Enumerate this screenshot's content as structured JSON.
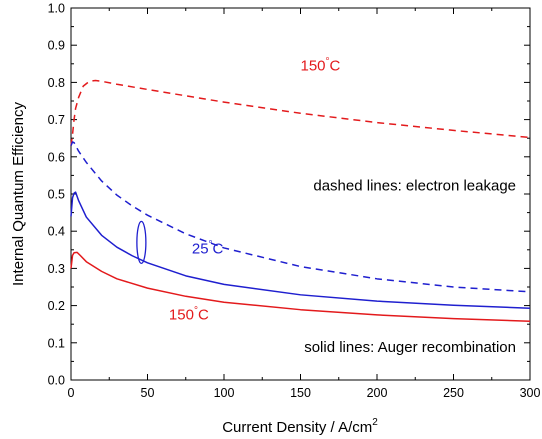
{
  "chart_data": {
    "type": "line",
    "xlabel": "Current Density / A/cm²",
    "ylabel": "Internal Quantum Efficiency",
    "xlim": [
      0,
      300
    ],
    "ylim": [
      0,
      1.0
    ],
    "x_ticks": [
      "0",
      "50",
      "100",
      "150",
      "200",
      "250",
      "300"
    ],
    "y_ticks": [
      "0.0",
      "0.1",
      "0.2",
      "0.3",
      "0.4",
      "0.5",
      "0.6",
      "0.7",
      "0.8",
      "0.9",
      "1.0"
    ],
    "grid": false,
    "series": [
      {
        "label": "150°C",
        "mechanism": "electron leakage",
        "style": "dashed",
        "color": "#e31a1c",
        "points": [
          [
            0,
            0.63
          ],
          [
            1,
            0.66
          ],
          [
            2,
            0.7
          ],
          [
            3,
            0.73
          ],
          [
            5,
            0.76
          ],
          [
            8,
            0.79
          ],
          [
            12,
            0.803
          ],
          [
            16,
            0.805
          ],
          [
            20,
            0.803
          ],
          [
            30,
            0.795
          ],
          [
            50,
            0.781
          ],
          [
            75,
            0.764
          ],
          [
            100,
            0.747
          ],
          [
            150,
            0.717
          ],
          [
            200,
            0.692
          ],
          [
            250,
            0.671
          ],
          [
            300,
            0.652
          ]
        ]
      },
      {
        "label": "25°C",
        "mechanism": "electron leakage",
        "style": "dashed",
        "color": "#1f1fcf",
        "points": [
          [
            0,
            0.63
          ],
          [
            1,
            0.64
          ],
          [
            2,
            0.638
          ],
          [
            5,
            0.615
          ],
          [
            10,
            0.585
          ],
          [
            20,
            0.535
          ],
          [
            30,
            0.497
          ],
          [
            40,
            0.468
          ],
          [
            50,
            0.443
          ],
          [
            75,
            0.393
          ],
          [
            100,
            0.355
          ],
          [
            150,
            0.305
          ],
          [
            200,
            0.272
          ],
          [
            250,
            0.25
          ],
          [
            300,
            0.237
          ]
        ]
      },
      {
        "label": "25°C",
        "mechanism": "Auger recombination",
        "style": "solid",
        "color": "#1f1fcf",
        "points": [
          [
            0,
            0.44
          ],
          [
            1,
            0.49
          ],
          [
            2,
            0.502
          ],
          [
            3,
            0.505
          ],
          [
            5,
            0.482
          ],
          [
            10,
            0.438
          ],
          [
            20,
            0.389
          ],
          [
            30,
            0.357
          ],
          [
            40,
            0.334
          ],
          [
            50,
            0.315
          ],
          [
            75,
            0.28
          ],
          [
            100,
            0.257
          ],
          [
            150,
            0.229
          ],
          [
            200,
            0.212
          ],
          [
            250,
            0.201
          ],
          [
            300,
            0.193
          ]
        ]
      },
      {
        "label": "150°C",
        "mechanism": "Auger recombination",
        "style": "solid",
        "color": "#e31a1c",
        "points": [
          [
            0,
            0.3
          ],
          [
            1,
            0.335
          ],
          [
            2,
            0.342
          ],
          [
            4,
            0.343
          ],
          [
            6,
            0.335
          ],
          [
            10,
            0.318
          ],
          [
            20,
            0.292
          ],
          [
            30,
            0.272
          ],
          [
            50,
            0.247
          ],
          [
            75,
            0.225
          ],
          [
            100,
            0.209
          ],
          [
            150,
            0.189
          ],
          [
            200,
            0.175
          ],
          [
            250,
            0.165
          ],
          [
            300,
            0.158
          ]
        ]
      }
    ],
    "annotations": [
      {
        "text": "150°C",
        "color": "#e31a1c",
        "x": 150,
        "y": 0.832
      },
      {
        "text": "dashed lines: electron leakage",
        "color": "#000000",
        "x": 300,
        "y": 0.51
      },
      {
        "text": "25°C",
        "color": "#1f1fcf",
        "x": 79,
        "y": 0.34
      },
      {
        "text": "150°C",
        "color": "#e31a1c",
        "x": 64,
        "y": 0.162
      },
      {
        "text": "solid lines: Auger recombination",
        "color": "#000000",
        "x": 300,
        "y": 0.075
      }
    ],
    "ellipse_marker": {
      "x": 46,
      "y": 0.37,
      "color": "#1f1fcf"
    }
  }
}
